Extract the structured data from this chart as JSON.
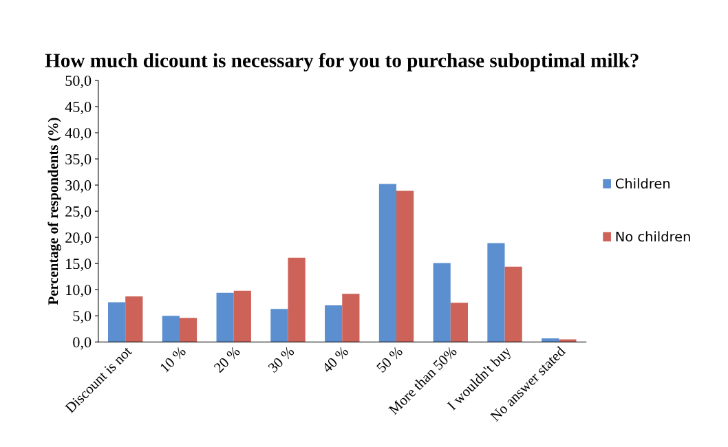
{
  "chart_data": {
    "type": "bar",
    "title": "How much dicount is necessary for you to purchase suboptimal milk?",
    "ylabel": "Percentage of respondents (%)",
    "categories": [
      "Discount is not",
      "10 %",
      "20 %",
      "30 %",
      "40 %",
      "50 %",
      "More than 50%",
      "I wouldn't buy",
      "No answer stated"
    ],
    "series": [
      {
        "name": "Children",
        "color": "#5b8fd0",
        "values": [
          7.6,
          5.0,
          9.4,
          6.3,
          7.0,
          30.2,
          15.1,
          18.9,
          0.7
        ]
      },
      {
        "name": "No children",
        "color": "#cd6259",
        "values": [
          8.7,
          4.6,
          9.8,
          16.1,
          9.2,
          28.9,
          7.5,
          14.4,
          0.5
        ]
      }
    ],
    "ylim": [
      0,
      50
    ],
    "yticks": [
      {
        "value": 0,
        "label": "0,0"
      },
      {
        "value": 5,
        "label": "5,0"
      },
      {
        "value": 10,
        "label": "10,0"
      },
      {
        "value": 15,
        "label": "15,0"
      },
      {
        "value": 20,
        "label": "20,0"
      },
      {
        "value": 25,
        "label": "25,0"
      },
      {
        "value": 30,
        "label": "30,0"
      },
      {
        "value": 35,
        "label": "35,0"
      },
      {
        "value": 40,
        "label": "40,0"
      },
      {
        "value": 45,
        "label": "45,0"
      },
      {
        "value": 50,
        "label": "50,0"
      }
    ],
    "grid": false,
    "legend": "right"
  }
}
